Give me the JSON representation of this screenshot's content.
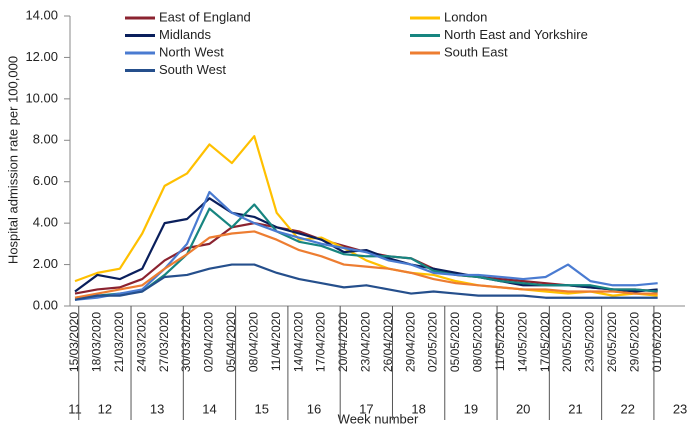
{
  "chart_data": {
    "type": "line",
    "y_label": "Hospital admission rate per 100,000",
    "x_label": "Week number",
    "categories": [
      "15/03/2020",
      "18/03/2020",
      "21/03/2020",
      "24/03/2020",
      "27/03/2020",
      "30/03/2020",
      "02/04/2020",
      "05/04/2020",
      "08/04/2020",
      "11/04/2020",
      "14/04/2020",
      "17/04/2020",
      "20/04/2020",
      "23/04/2020",
      "26/04/2020",
      "29/04/2020",
      "02/05/2020",
      "05/05/2020",
      "08/05/2020",
      "11/05/2020",
      "14/05/2020",
      "17/05/2020",
      "20/05/2020",
      "23/05/2020",
      "26/05/2020",
      "29/05/2020",
      "01/06/2020"
    ],
    "weeks": [
      "11",
      "12",
      "13",
      "14",
      "15",
      "16",
      "17",
      "18",
      "19",
      "20",
      "21",
      "22",
      "23"
    ],
    "ylim": [
      0,
      14
    ],
    "yticks": [
      {
        "value": 0,
        "label": "0.00"
      },
      {
        "value": 2,
        "label": "2.00"
      },
      {
        "value": 4,
        "label": "4.00"
      },
      {
        "value": 6,
        "label": "6.00"
      },
      {
        "value": 8,
        "label": "8.00"
      },
      {
        "value": 10,
        "label": "10.00"
      },
      {
        "value": 12,
        "label": "12.00"
      },
      {
        "value": 14,
        "label": "14.00"
      }
    ],
    "series": [
      {
        "name": "East of England",
        "color": "#8b2330",
        "values": [
          0.6,
          0.8,
          0.9,
          1.3,
          2.2,
          2.8,
          3.0,
          3.8,
          4.0,
          3.8,
          3.6,
          3.2,
          2.9,
          2.6,
          2.4,
          2.3,
          1.8,
          1.5,
          1.4,
          1.3,
          1.2,
          1.1,
          1.0,
          0.9,
          0.8,
          0.8,
          0.7
        ]
      },
      {
        "name": "London",
        "color": "#ffc000",
        "values": [
          1.2,
          1.6,
          1.8,
          3.5,
          5.8,
          6.4,
          7.8,
          6.9,
          8.2,
          4.5,
          3.2,
          3.3,
          2.8,
          2.2,
          1.8,
          1.6,
          1.5,
          1.2,
          1.0,
          0.9,
          0.8,
          0.7,
          0.6,
          0.7,
          0.5,
          0.6,
          0.5
        ]
      },
      {
        "name": "Midlands",
        "color": "#0a1f5c",
        "values": [
          0.7,
          1.5,
          1.3,
          1.8,
          4.0,
          4.2,
          5.2,
          4.5,
          4.3,
          3.8,
          3.5,
          3.2,
          2.6,
          2.7,
          2.3,
          2.0,
          1.8,
          1.6,
          1.4,
          1.2,
          1.0,
          1.0,
          1.0,
          0.9,
          0.8,
          0.7,
          0.8
        ]
      },
      {
        "name": "North East and Yorkshire",
        "color": "#178580",
        "values": [
          0.4,
          0.5,
          0.6,
          0.7,
          1.5,
          2.5,
          4.7,
          3.8,
          4.9,
          3.6,
          3.1,
          2.9,
          2.5,
          2.4,
          2.4,
          2.3,
          1.7,
          1.5,
          1.4,
          1.2,
          1.1,
          1.0,
          1.0,
          1.0,
          0.8,
          0.8,
          0.7
        ]
      },
      {
        "name": "North West",
        "color": "#4a7bd1",
        "values": [
          0.3,
          0.4,
          0.6,
          0.8,
          1.8,
          3.0,
          5.5,
          4.5,
          4.0,
          3.6,
          3.3,
          3.0,
          2.8,
          2.6,
          2.2,
          2.0,
          1.6,
          1.5,
          1.5,
          1.4,
          1.3,
          1.4,
          2.0,
          1.2,
          1.0,
          1.0,
          1.1
        ]
      },
      {
        "name": "South East",
        "color": "#ed7d31",
        "values": [
          0.4,
          0.6,
          0.8,
          1.0,
          1.8,
          2.5,
          3.3,
          3.5,
          3.6,
          3.2,
          2.7,
          2.4,
          2.0,
          1.9,
          1.8,
          1.6,
          1.3,
          1.1,
          1.0,
          0.9,
          0.8,
          0.8,
          0.7,
          0.7,
          0.7,
          0.6,
          0.6
        ]
      },
      {
        "name": "South West",
        "color": "#254f8c",
        "values": [
          0.3,
          0.5,
          0.5,
          0.7,
          1.4,
          1.5,
          1.8,
          2.0,
          2.0,
          1.6,
          1.3,
          1.1,
          0.9,
          1.0,
          0.8,
          0.6,
          0.7,
          0.6,
          0.5,
          0.5,
          0.5,
          0.4,
          0.4,
          0.4,
          0.4,
          0.4,
          0.4
        ]
      }
    ]
  }
}
